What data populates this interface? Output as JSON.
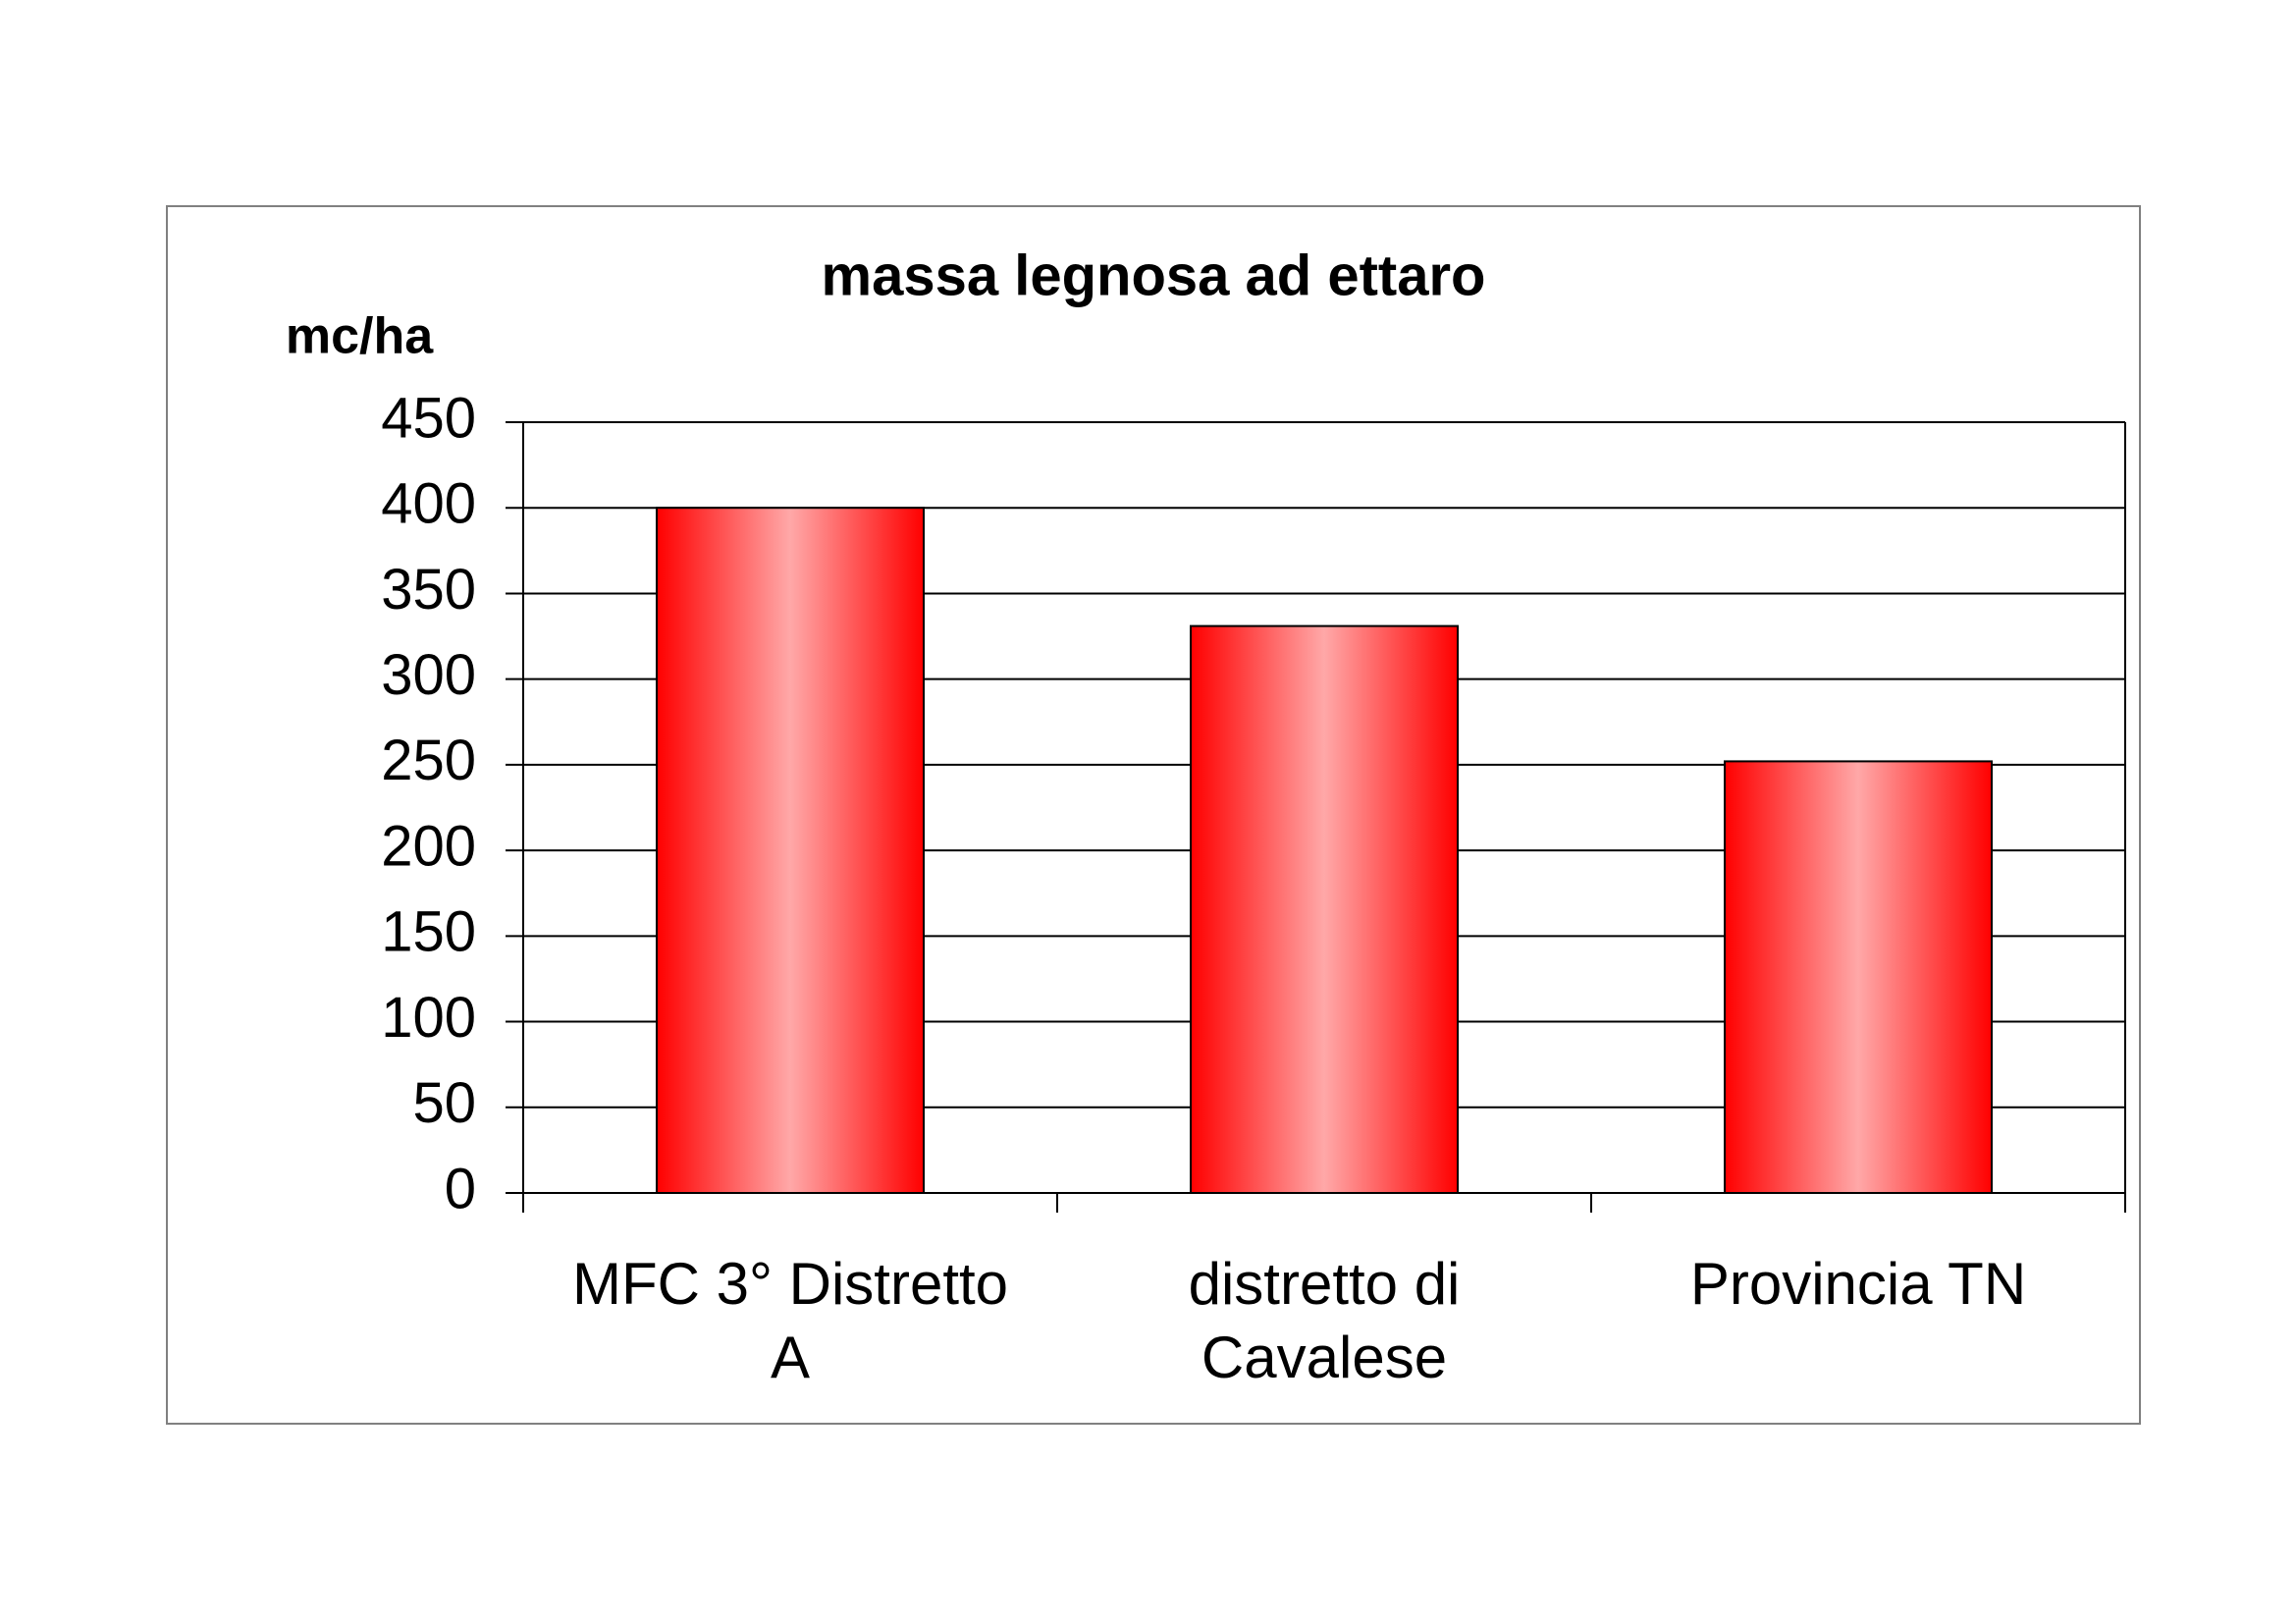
{
  "chart_data": {
    "type": "bar",
    "title": "massa legnosa ad ettaro",
    "y_label": "mc/ha",
    "categories": [
      "MFC 3° Distretto A",
      "distretto di Cavalese",
      "Provincia TN"
    ],
    "values": [
      400,
      331,
      252
    ],
    "color": "#ff0000",
    "ylim": [
      0,
      450
    ],
    "yticks": [
      0,
      50,
      100,
      150,
      200,
      250,
      300,
      350,
      400,
      450
    ],
    "grid": true
  }
}
